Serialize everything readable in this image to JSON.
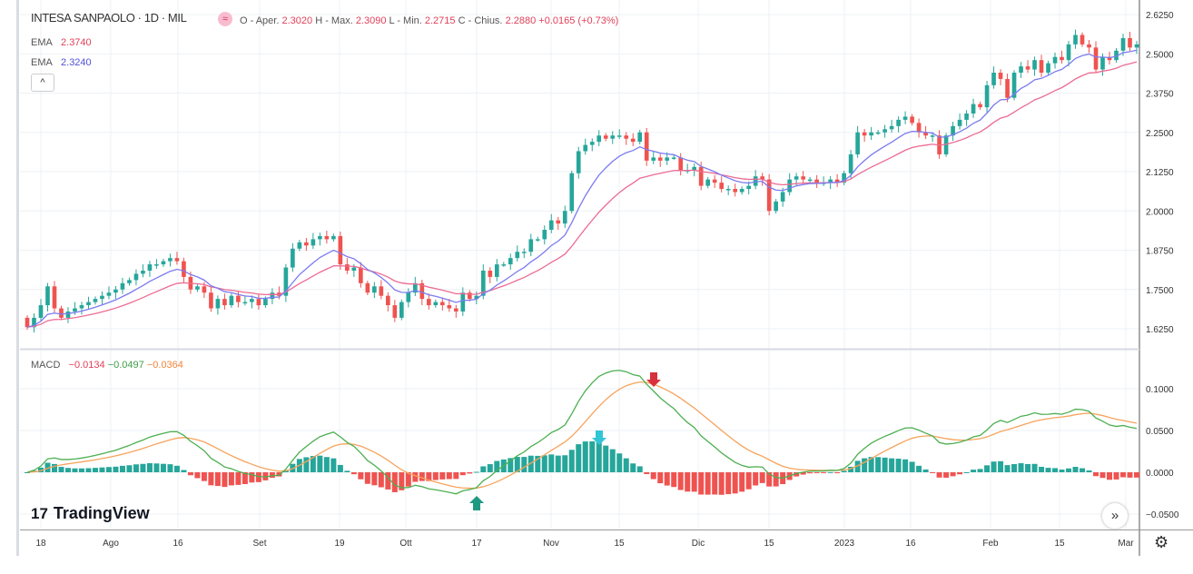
{
  "header": {
    "symbol": "INTESA SANPAOLO · 1D · MIL",
    "badge_icon": "≈",
    "o_label": "O - Aper.",
    "o": "2.3020",
    "h_label": "H - Max.",
    "h": "2.3090",
    "l_label": "L - Min.",
    "l": "2.2715",
    "c_label": "C - Chius.",
    "c": "2.2880",
    "change": "+0.0165 (+0.73%)"
  },
  "ema1": {
    "label": "EMA",
    "value": "2.3740",
    "color": "#e8537a"
  },
  "ema2": {
    "label": "EMA",
    "value": "2.3240",
    "color": "#5a5ae0"
  },
  "collapse_icon": "^",
  "macd": {
    "label": "MACD",
    "hist": "−0.0134",
    "macd": "−0.0497",
    "signal": "−0.0364"
  },
  "logo": {
    "mark": "17",
    "text": "TradingView"
  },
  "scroll_button": "»",
  "settings_icon": "⚙",
  "colors": {
    "up": "#26a69a",
    "down": "#ef5350",
    "macd_line": "#4caf50",
    "signal_line": "#f7a35c",
    "hist_up": "#26a69a",
    "hist_down": "#ef5350",
    "ema_fast": "#7b7bf0",
    "ema_slow": "#ec6b93"
  },
  "chart_data": [
    {
      "type": "candlestick",
      "price_ticks": [
        "2.6250",
        "2.5000",
        "2.3750",
        "2.2500",
        "2.1250",
        "2.0000",
        "1.8750",
        "1.7500",
        "1.6250"
      ],
      "ylim": [
        1.625,
        2.625
      ],
      "x_ticks": [
        "18",
        "Ago",
        "16",
        "Set",
        "19",
        "Ott",
        "17",
        "Nov",
        "15",
        "Dic",
        "15",
        "2023",
        "16",
        "Feb",
        "15",
        "Mar"
      ],
      "closes": [
        1.63,
        1.66,
        1.7,
        1.76,
        1.69,
        1.66,
        1.68,
        1.69,
        1.7,
        1.71,
        1.72,
        1.73,
        1.74,
        1.75,
        1.77,
        1.78,
        1.8,
        1.81,
        1.83,
        1.83,
        1.84,
        1.85,
        1.84,
        1.79,
        1.75,
        1.76,
        1.74,
        1.69,
        1.72,
        1.7,
        1.73,
        1.71,
        1.71,
        1.72,
        1.7,
        1.72,
        1.74,
        1.73,
        1.82,
        1.88,
        1.9,
        1.89,
        1.91,
        1.92,
        1.91,
        1.92,
        1.83,
        1.81,
        1.82,
        1.77,
        1.74,
        1.76,
        1.73,
        1.7,
        1.66,
        1.71,
        1.74,
        1.77,
        1.72,
        1.7,
        1.71,
        1.7,
        1.69,
        1.68,
        1.74,
        1.72,
        1.73,
        1.81,
        1.79,
        1.83,
        1.83,
        1.85,
        1.87,
        1.87,
        1.91,
        1.91,
        1.94,
        1.97,
        1.96,
        2.0,
        2.12,
        2.19,
        2.21,
        2.22,
        2.24,
        2.23,
        2.24,
        2.24,
        2.23,
        2.22,
        2.25,
        2.16,
        2.17,
        2.16,
        2.17,
        2.17,
        2.13,
        2.13,
        2.14,
        2.08,
        2.1,
        2.09,
        2.07,
        2.07,
        2.06,
        2.07,
        2.08,
        2.11,
        2.1,
        2.0,
        2.03,
        2.06,
        2.1,
        2.11,
        2.1,
        2.1,
        2.09,
        2.09,
        2.1,
        2.09,
        2.12,
        2.18,
        2.25,
        2.24,
        2.25,
        2.25,
        2.26,
        2.27,
        2.29,
        2.3,
        2.28,
        2.25,
        2.24,
        2.24,
        2.18,
        2.24,
        2.27,
        2.29,
        2.31,
        2.34,
        2.33,
        2.4,
        2.44,
        2.42,
        2.36,
        2.44,
        2.46,
        2.45,
        2.48,
        2.44,
        2.47,
        2.49,
        2.48,
        2.53,
        2.56,
        2.53,
        2.52,
        2.45,
        2.49,
        2.48,
        2.51,
        2.55,
        2.52,
        2.53
      ]
    },
    {
      "type": "line",
      "name": "MACD",
      "ticks": [
        "0.1000",
        "0.0500",
        "0.0000",
        "−0.0500"
      ],
      "ylim": [
        -0.05,
        0.1
      ]
    }
  ]
}
